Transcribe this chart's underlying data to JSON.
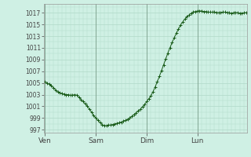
{
  "background_color": "#cff0e4",
  "plot_bg_color": "#cff0e4",
  "line_color": "#1a5c1a",
  "marker_color": "#1a5c1a",
  "grid_color": "#b0d9c8",
  "tick_label_color": "#444444",
  "border_color": "#999999",
  "ylim": [
    996.5,
    1018.5
  ],
  "yticks": [
    997,
    999,
    1001,
    1003,
    1005,
    1007,
    1009,
    1011,
    1013,
    1015,
    1017
  ],
  "xtick_labels": [
    "Ven",
    "Sam",
    "Dim",
    "Lun"
  ],
  "xtick_positions": [
    0,
    24,
    48,
    72
  ],
  "y_values": [
    1005.2,
    1005.0,
    1004.8,
    1004.5,
    1004.2,
    1003.8,
    1003.5,
    1003.3,
    1003.2,
    1003.1,
    1003.0,
    1003.0,
    1002.9,
    1002.9,
    1003.0,
    1002.9,
    1002.6,
    1002.2,
    1001.8,
    1001.4,
    1001.0,
    1000.5,
    1000.0,
    999.4,
    999.0,
    998.6,
    998.2,
    997.9,
    997.7,
    997.7,
    997.8,
    997.8,
    997.9,
    998.0,
    998.1,
    998.2,
    998.3,
    998.5,
    998.6,
    998.8,
    999.0,
    999.3,
    999.6,
    999.9,
    1000.2,
    1000.5,
    1000.9,
    1001.3,
    1001.8,
    1002.3,
    1002.8,
    1003.5,
    1004.3,
    1005.2,
    1006.1,
    1007.1,
    1008.1,
    1009.1,
    1010.1,
    1011.0,
    1011.9,
    1012.7,
    1013.5,
    1014.2,
    1014.9,
    1015.4,
    1015.9,
    1016.3,
    1016.6,
    1016.9,
    1017.1,
    1017.2,
    1017.3,
    1017.3,
    1017.3,
    1017.2,
    1017.2,
    1017.1,
    1017.1,
    1017.1,
    1017.1,
    1017.0,
    1017.0,
    1017.0,
    1017.1,
    1017.1,
    1017.0,
    1017.0,
    1016.9,
    1017.0,
    1017.0,
    1017.0,
    1016.9,
    1016.9,
    1017.0,
    1017.0
  ]
}
